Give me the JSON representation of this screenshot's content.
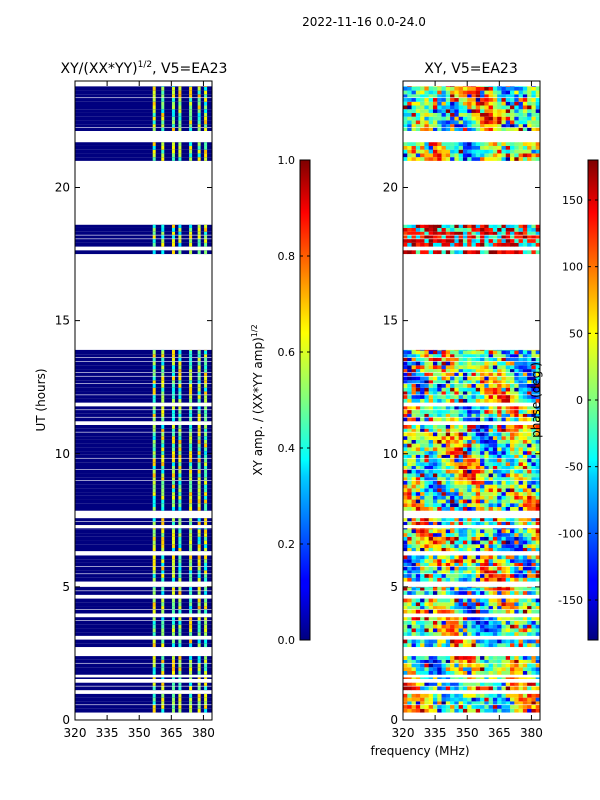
{
  "figure_title": "2022-11-16 0.0-24.0",
  "colors": {
    "band_blue": "#00007f",
    "frame": "#000000",
    "background": "#ffffff"
  },
  "chart_data": [
    {
      "type": "heatmap",
      "title_main": "XY/(XX*YY)",
      "title_sup": "1/2",
      "title_rest": ", V5=EA23",
      "xlabel": "",
      "ylabel": "UT (hours)",
      "xlim": [
        320,
        384
      ],
      "ylim": [
        0,
        24
      ],
      "xticks": [
        320,
        335,
        350,
        365,
        380
      ],
      "yticks": [
        0,
        5,
        10,
        15,
        20
      ],
      "colorbar": {
        "label_main": "XY amp. / (XX*YY amp)",
        "label_sup": "1/2",
        "range": [
          0.0,
          1.0
        ],
        "ticks": [
          "0.0",
          "0.2",
          "0.4",
          "0.6",
          "0.8",
          "1.0"
        ],
        "colormap": "jet"
      }
    },
    {
      "type": "heatmap",
      "title": "XY, V5=EA23",
      "xlabel": "frequency (MHz)",
      "ylabel": "",
      "xlim": [
        320,
        384
      ],
      "ylim": [
        0,
        24
      ],
      "xticks": [
        320,
        335,
        350,
        365,
        380
      ],
      "yticks": [
        0,
        5,
        10,
        15,
        20
      ],
      "colorbar": {
        "label": "phase (deg.)",
        "range": [
          -180,
          180
        ],
        "ticks": [
          -150,
          -100,
          -50,
          0,
          50,
          100,
          150
        ],
        "colormap": "jet"
      }
    }
  ],
  "data_segments_ut_hours": [
    [
      0.0,
      1.6
    ],
    [
      1.7,
      2.4
    ],
    [
      2.6,
      5.0
    ],
    [
      5.2,
      7.2
    ],
    [
      7.3,
      13.9
    ],
    [
      17.2,
      17.3
    ],
    [
      17.5,
      18.6
    ],
    [
      21.0,
      21.7
    ],
    [
      22.1,
      23.8
    ]
  ],
  "bright_channels_mhz": [
    357,
    361,
    366,
    369,
    374,
    378,
    381
  ]
}
